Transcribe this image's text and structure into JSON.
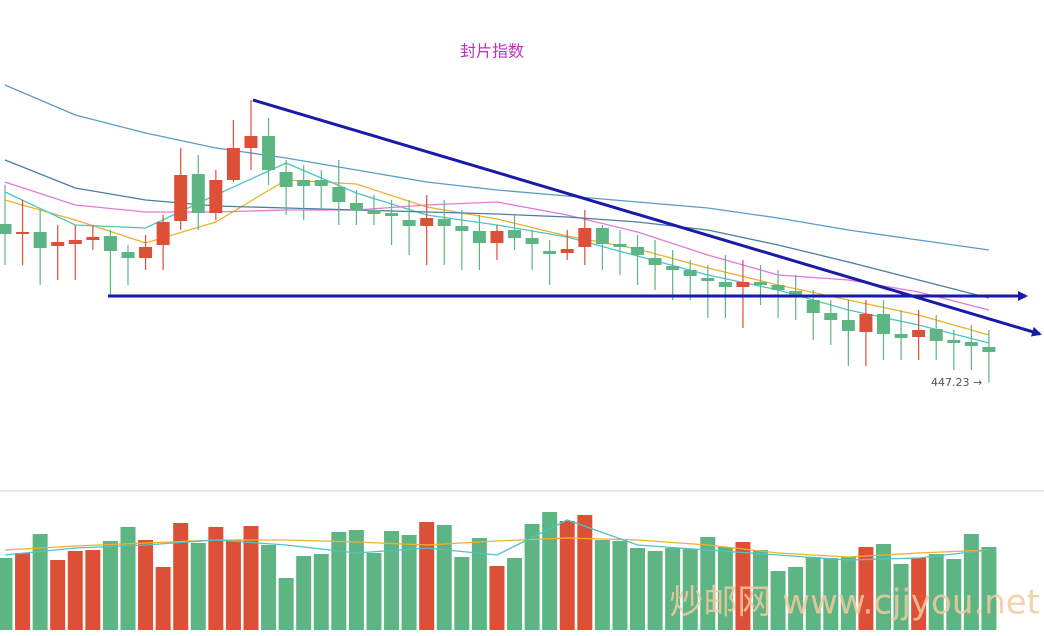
{
  "chart_data": [
    {
      "type": "candlestick",
      "title": "封片指数",
      "categories": [
        null,
        null,
        null,
        null,
        null,
        null,
        null,
        null,
        null,
        null,
        null,
        null,
        null,
        null,
        null,
        null,
        null,
        null,
        null,
        null,
        null,
        null,
        null,
        null,
        null,
        null,
        null,
        null,
        null,
        null,
        null,
        null,
        null,
        null,
        null,
        null,
        null,
        null,
        null,
        null,
        null,
        null,
        null,
        null,
        null,
        null,
        null,
        null,
        null,
        null,
        null,
        null,
        null,
        null,
        null,
        null,
        null
      ],
      "open": [
        606,
        596,
        598,
        584,
        586,
        590,
        594,
        578,
        572,
        585,
        609,
        656,
        617,
        650,
        682,
        694,
        658,
        650,
        650,
        643,
        627,
        620,
        617,
        610,
        604,
        611,
        604,
        599,
        587,
        600,
        592,
        579,
        577,
        583,
        602,
        586,
        583,
        572,
        564,
        560,
        552,
        548,
        543,
        548,
        545,
        539,
        530,
        517,
        510,
        498,
        516,
        496,
        493,
        501,
        490,
        488,
        483
      ],
      "close": [
        596,
        598,
        582,
        588,
        590,
        593,
        579,
        572,
        583,
        608,
        655,
        617,
        650,
        682,
        694,
        660,
        643,
        644,
        644,
        628,
        620,
        616,
        614,
        604,
        612,
        604,
        599,
        587,
        599,
        592,
        586,
        576,
        581,
        602,
        586,
        583,
        575,
        565,
        560,
        554,
        549,
        543,
        548,
        545,
        540,
        533,
        517,
        510,
        499,
        516,
        496,
        492,
        500,
        489,
        487,
        484,
        478
      ],
      "high": [
        645,
        630,
        620,
        605,
        605,
        605,
        600,
        585,
        595,
        615,
        682,
        675,
        660,
        710,
        730,
        712,
        670,
        665,
        660,
        670,
        640,
        635,
        630,
        630,
        635,
        630,
        620,
        615,
        605,
        615,
        600,
        590,
        600,
        620,
        605,
        600,
        595,
        590,
        580,
        570,
        565,
        575,
        570,
        565,
        560,
        555,
        540,
        530,
        530,
        530,
        530,
        520,
        520,
        515,
        500,
        505,
        500
      ],
      "low": [
        565,
        565,
        545,
        550,
        550,
        580,
        533,
        545,
        560,
        560,
        600,
        600,
        610,
        648,
        660,
        645,
        615,
        610,
        620,
        605,
        605,
        605,
        585,
        575,
        565,
        565,
        560,
        560,
        570,
        580,
        560,
        545,
        570,
        565,
        560,
        555,
        545,
        540,
        530,
        530,
        512,
        512,
        502,
        525,
        512,
        510,
        490,
        485,
        464,
        464,
        470,
        470,
        470,
        470,
        460,
        460,
        447.23
      ],
      "up_color": "#dd5038",
      "down_color": "#5db584",
      "ylim": [
        380,
        830
      ],
      "overlays": [
        {
          "color": "#f0b030",
          "x": [
            0,
            4,
            8,
            12,
            16,
            20,
            24,
            28,
            32,
            36,
            40,
            44,
            48,
            52,
            56
          ],
          "values": [
            630,
            610,
            587,
            608,
            650,
            646,
            623,
            611,
            594,
            581,
            562,
            545,
            530,
            515,
            495
          ]
        },
        {
          "color": "#4fc4c4",
          "x": [
            0,
            4,
            8,
            12,
            16,
            20,
            24,
            28,
            32,
            36,
            40,
            44,
            48,
            52,
            56
          ],
          "values": [
            638,
            605,
            602,
            635,
            667,
            637,
            615,
            605,
            593,
            574,
            555,
            540,
            520,
            505,
            487
          ]
        },
        {
          "color": "#e27ad6",
          "x": [
            0,
            4,
            8,
            12,
            16,
            20,
            24,
            28,
            32,
            36,
            40,
            44,
            48,
            52,
            56
          ],
          "values": [
            648,
            625,
            618,
            618,
            620,
            620,
            625,
            628,
            615,
            598,
            575,
            555,
            550,
            538,
            520
          ]
        },
        {
          "color": "#5b9bc8",
          "x": [
            0,
            4,
            8,
            12,
            16,
            20,
            24,
            28,
            32,
            36,
            40,
            44,
            48,
            52,
            56
          ],
          "values": [
            745,
            715,
            697,
            682,
            672,
            660,
            648,
            640,
            634,
            628,
            622,
            612,
            600,
            590,
            580
          ]
        },
        {
          "color": "#4a7fa0",
          "x": [
            0,
            4,
            8,
            12,
            16,
            20,
            24,
            28,
            32,
            36,
            40,
            44,
            48,
            52,
            56
          ],
          "values": [
            670,
            642,
            630,
            624,
            622,
            620,
            618,
            616,
            613,
            608,
            600,
            585,
            568,
            550,
            532
          ]
        }
      ],
      "last_label": "447.23 →"
    },
    {
      "type": "bar",
      "values": [
        72,
        77,
        96,
        70,
        79,
        80,
        89,
        103,
        90,
        63,
        107,
        87,
        103,
        90,
        104,
        85,
        52,
        74,
        76,
        98,
        100,
        77,
        99,
        95,
        108,
        105,
        73,
        92,
        64,
        72,
        106,
        118,
        109,
        115,
        90,
        89,
        82,
        79,
        82,
        81,
        93,
        83,
        88,
        80,
        59,
        63,
        73,
        72,
        73,
        83,
        86,
        66,
        72,
        76,
        71,
        96,
        83
      ],
      "ylim": [
        0,
        140
      ],
      "overlays": [
        {
          "color": "#f0b030",
          "x": [
            0,
            4,
            8,
            12,
            16,
            20,
            24,
            28,
            32,
            36,
            40,
            44,
            48,
            52,
            56
          ],
          "values": [
            80,
            84,
            87,
            90,
            90,
            88,
            85,
            89,
            92,
            90,
            85,
            77,
            73,
            77,
            80
          ]
        },
        {
          "color": "#4fc4c4",
          "x": [
            0,
            4,
            8,
            12,
            16,
            20,
            24,
            28,
            32,
            36,
            40,
            44,
            48,
            52,
            56
          ],
          "values": [
            75,
            82,
            85,
            90,
            85,
            77,
            82,
            75,
            110,
            85,
            80,
            75,
            70,
            72,
            80
          ]
        }
      ]
    }
  ],
  "watermark": "炒邮网 www.cjjyou.net"
}
